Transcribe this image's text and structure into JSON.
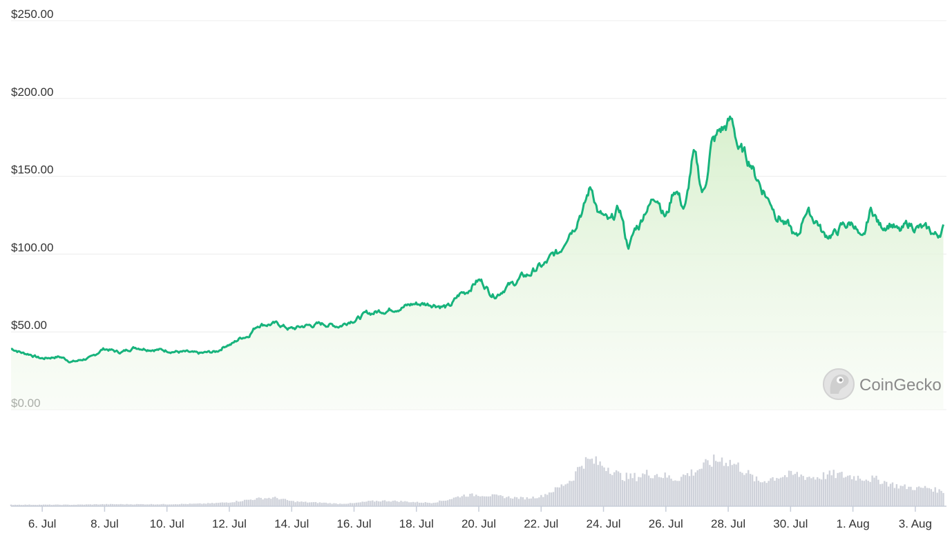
{
  "chart_data": {
    "type": "area",
    "title": "",
    "xlabel": "",
    "ylabel": "",
    "grid": true,
    "legend": "none",
    "ylim": [
      0,
      250
    ],
    "y_ticks": [
      "$250.00",
      "$200.00",
      "$150.00",
      "$100.00",
      "$50.00",
      "$0.00"
    ],
    "x_ticks": [
      "6. Jul",
      "8. Jul",
      "10. Jul",
      "12. Jul",
      "14. Jul",
      "16. Jul",
      "18. Jul",
      "20. Jul",
      "22. Jul",
      "24. Jul",
      "26. Jul",
      "28. Jul",
      "30. Jul",
      "1. Aug",
      "3. Aug"
    ],
    "x_tick_days": [
      1,
      3,
      5,
      7,
      9,
      11,
      13,
      15,
      17,
      19,
      21,
      23,
      25,
      27,
      29
    ],
    "x_range_days": [
      0,
      30
    ],
    "price": {
      "x_days": [
        0,
        0.5,
        1,
        1.5,
        2,
        2.5,
        3,
        3.5,
        4,
        4.5,
        5,
        5.5,
        6,
        6.5,
        7,
        7.5,
        8,
        8.5,
        9,
        9.5,
        10,
        10.5,
        11,
        11.5,
        12,
        12.5,
        13,
        13.5,
        14,
        14.5,
        15,
        15.5,
        16,
        16.5,
        17,
        17.5,
        18,
        18.3,
        18.6,
        18.9,
        19.2,
        19.5,
        19.8,
        20.1,
        20.4,
        20.7,
        21,
        21.3,
        21.6,
        21.9,
        22.2,
        22.5,
        22.8,
        23.1,
        23.4,
        23.7,
        23.9,
        24.1,
        24.3,
        24.6,
        24.9,
        25.2,
        25.5,
        25.8,
        26.1,
        26.4,
        26.7,
        27,
        27.3,
        27.6,
        27.9,
        28.2,
        28.5,
        28.8,
        29.1,
        29.4,
        29.7,
        29.9
      ],
      "values": [
        39,
        36,
        33,
        34,
        31,
        33,
        39,
        37,
        40,
        39,
        38,
        37,
        36,
        37,
        42,
        47,
        55,
        55,
        52,
        54,
        55,
        54,
        58,
        62,
        64,
        66,
        68,
        68,
        66,
        75,
        83,
        74,
        80,
        86,
        92,
        100,
        117,
        128,
        142,
        125,
        120,
        128,
        106,
        118,
        130,
        138,
        125,
        142,
        130,
        162,
        140,
        172,
        180,
        185,
        166,
        160,
        150,
        142,
        135,
        125,
        118,
        110,
        128,
        122,
        112,
        113,
        118,
        120,
        108,
        128,
        118,
        120,
        114,
        119,
        117,
        115,
        112,
        117
      ]
    },
    "volume": {
      "x_days": [
        0,
        1,
        2,
        3,
        4,
        5,
        6,
        6.5,
        7,
        7.5,
        8,
        8.5,
        9,
        9.5,
        10,
        10.5,
        11,
        11.5,
        12,
        12.5,
        13,
        13.5,
        14,
        14.5,
        15,
        15.5,
        16,
        16.5,
        17,
        17.5,
        18,
        18.3,
        18.6,
        18.9,
        19.2,
        19.5,
        19.8,
        20.1,
        20.4,
        20.7,
        21,
        21.3,
        21.6,
        21.9,
        22.2,
        22.5,
        22.8,
        23.1,
        23.4,
        23.7,
        24,
        24.3,
        24.6,
        24.9,
        25.2,
        25.5,
        25.8,
        26.1,
        26.4,
        26.7,
        27,
        27.3,
        27.6,
        27.9,
        28.2,
        28.5,
        28.8,
        29.1,
        29.4,
        29.7,
        29.9
      ],
      "relative_values": [
        0.03,
        0.03,
        0.03,
        0.04,
        0.04,
        0.04,
        0.05,
        0.06,
        0.08,
        0.12,
        0.16,
        0.17,
        0.1,
        0.08,
        0.07,
        0.05,
        0.06,
        0.1,
        0.11,
        0.1,
        0.08,
        0.07,
        0.13,
        0.22,
        0.23,
        0.21,
        0.18,
        0.16,
        0.2,
        0.35,
        0.55,
        0.88,
        0.92,
        0.85,
        0.78,
        0.62,
        0.58,
        0.6,
        0.66,
        0.65,
        0.6,
        0.55,
        0.62,
        0.7,
        0.8,
        0.9,
        0.95,
        0.88,
        0.78,
        0.62,
        0.48,
        0.55,
        0.6,
        0.62,
        0.64,
        0.6,
        0.58,
        0.62,
        0.64,
        0.62,
        0.6,
        0.58,
        0.55,
        0.52,
        0.45,
        0.4,
        0.38,
        0.36,
        0.38,
        0.32,
        0.3
      ]
    },
    "colors": {
      "line": "#17b37c",
      "fill": "#e3f4dc",
      "volume": "#cfd2da",
      "grid": "#ececec",
      "axis": "#c7cdd9"
    }
  },
  "watermark": {
    "text": "CoinGecko",
    "icon": "gecko-icon"
  }
}
